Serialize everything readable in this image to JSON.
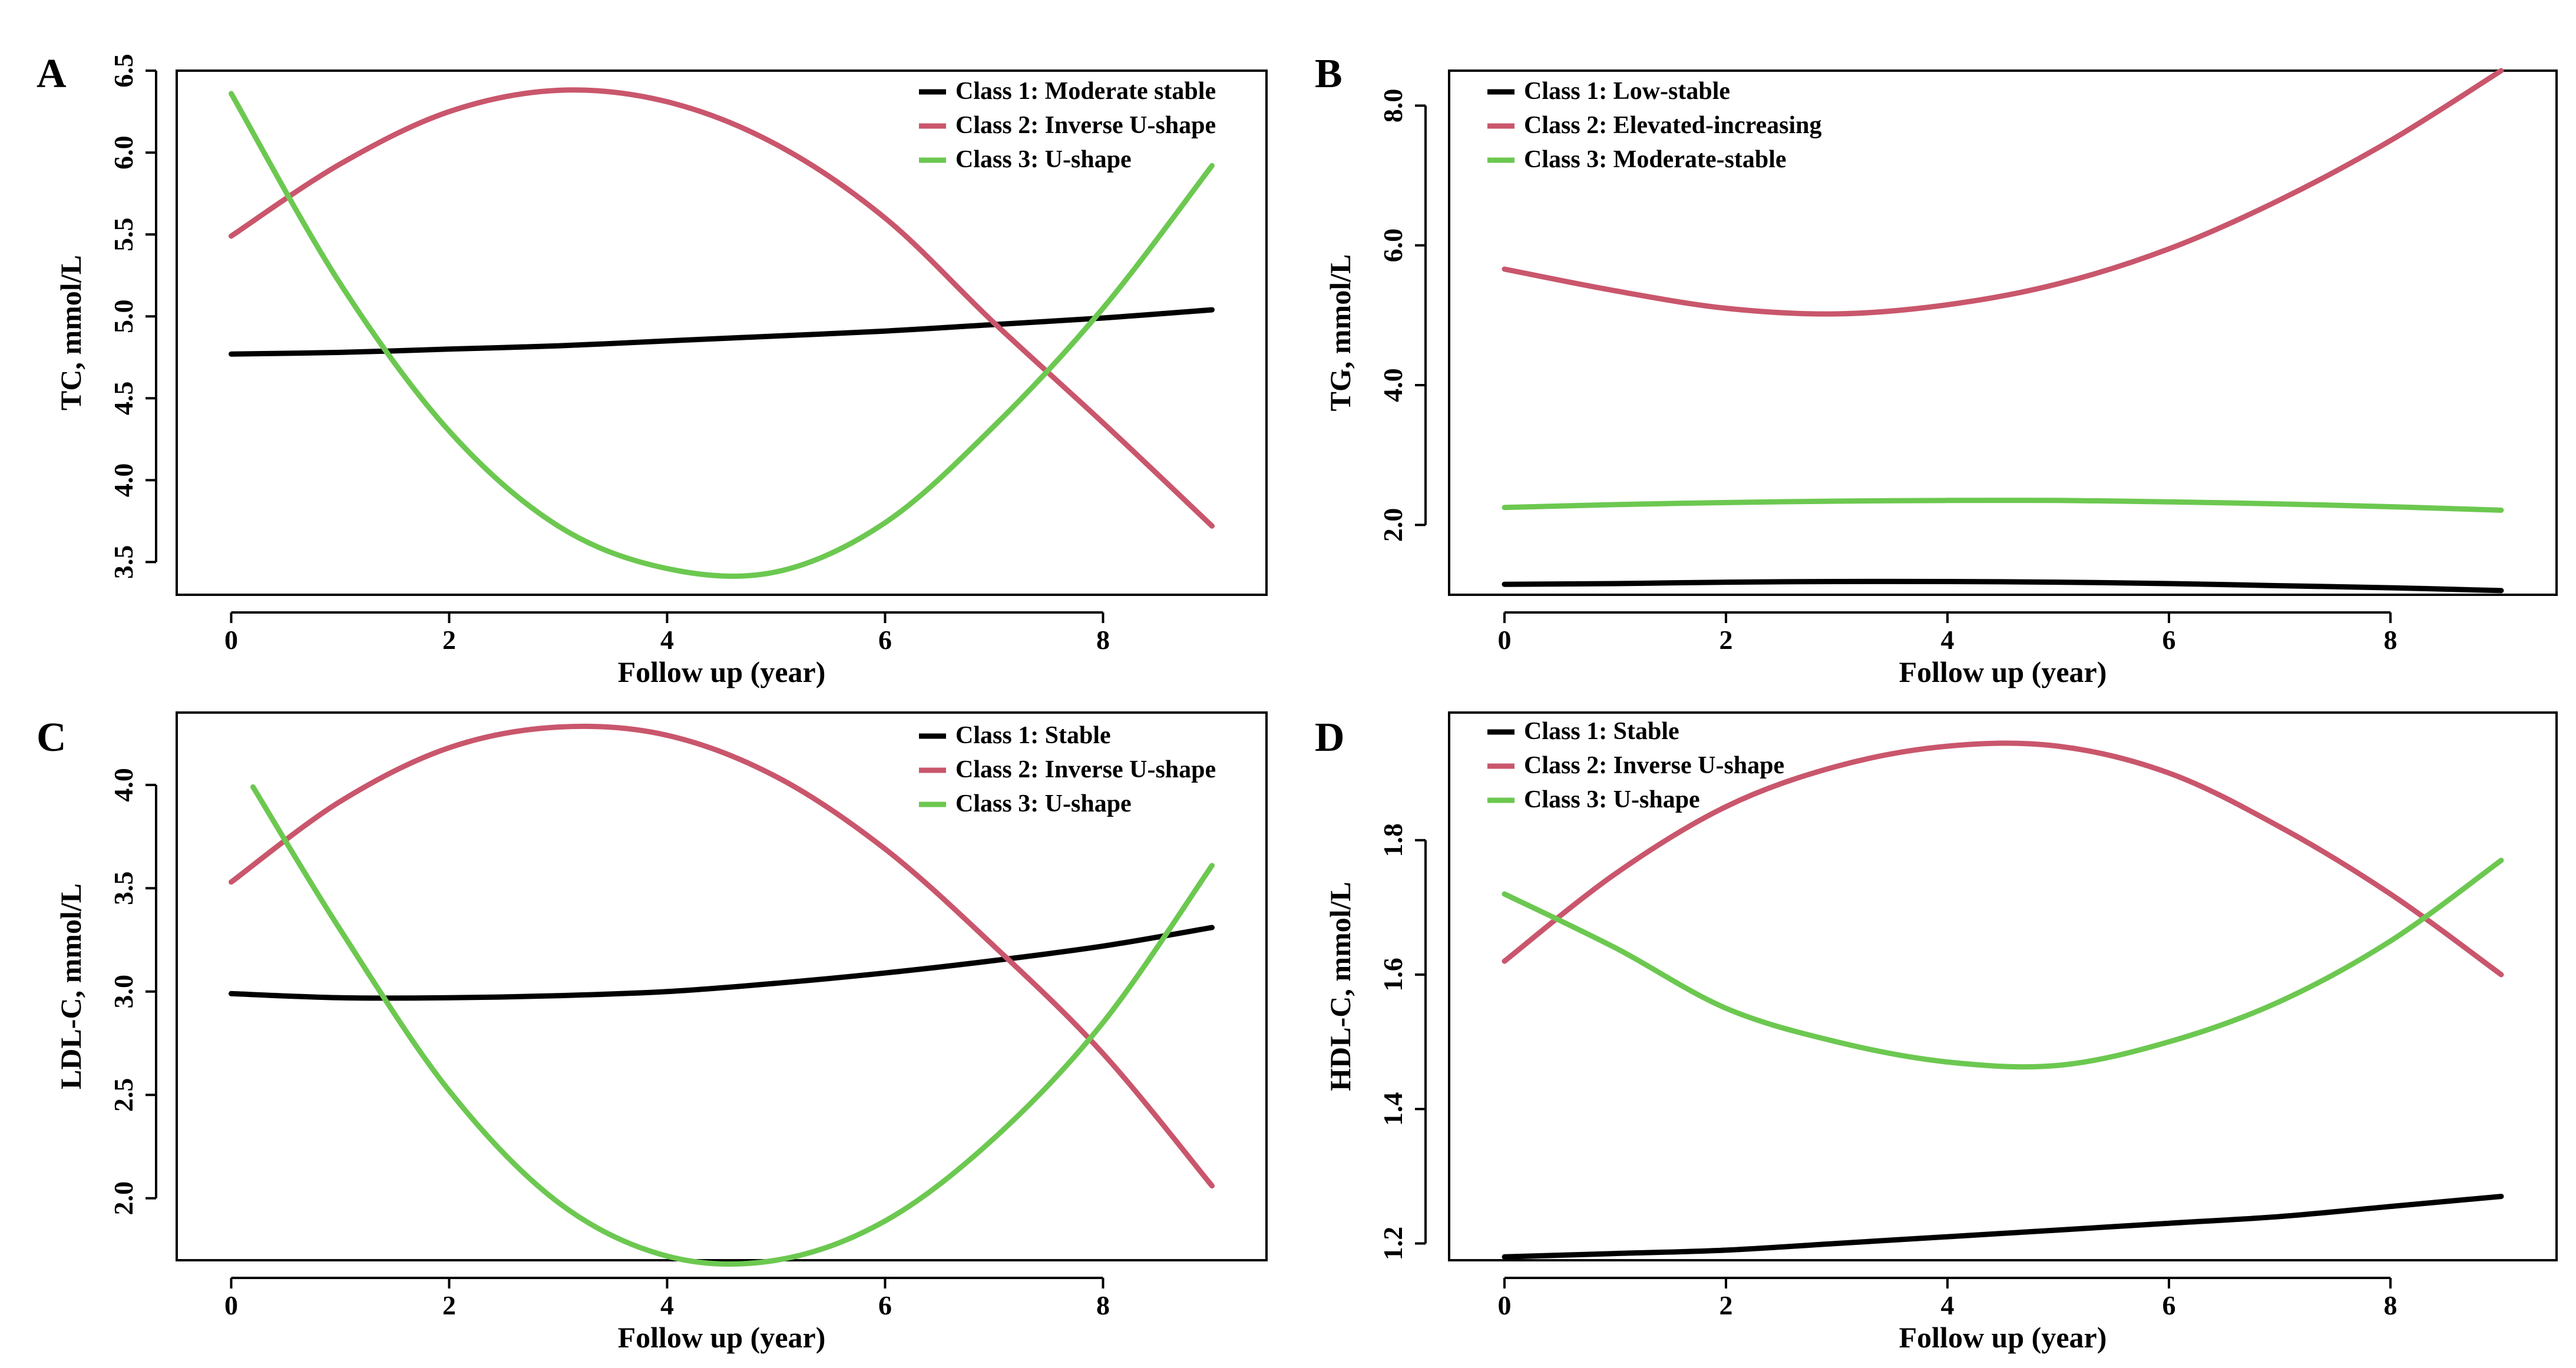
{
  "chart_data": [
    {
      "type": "line",
      "panel": "A",
      "xlabel": "Follow up (year)",
      "ylabel": "TC, mmol/L",
      "xlim": [
        -0.5,
        9.5
      ],
      "ylim": [
        3.3,
        6.5
      ],
      "xticks": [
        0,
        2,
        4,
        6,
        8
      ],
      "yticks": [
        3.5,
        4.0,
        4.5,
        5.0,
        5.5,
        6.0,
        6.5
      ],
      "ytick_labels": [
        "3.5",
        "4.0",
        "4.5",
        "5.0",
        "5.5",
        "6.0",
        "6.5"
      ],
      "legend_position": "top-right",
      "series": [
        {
          "name": "Class 1: Moderate stable",
          "color": "#000000",
          "x": [
            0,
            1,
            2,
            3,
            4,
            5,
            6,
            7,
            8,
            9
          ],
          "y": [
            4.77,
            4.78,
            4.8,
            4.82,
            4.85,
            4.88,
            4.91,
            4.95,
            4.99,
            5.04
          ]
        },
        {
          "name": "Class 2: Inverse U-shape",
          "color": "#c9566c",
          "x": [
            0,
            1,
            2,
            3,
            4,
            5,
            6,
            7,
            8,
            9
          ],
          "y": [
            5.49,
            5.93,
            6.25,
            6.38,
            6.31,
            6.05,
            5.6,
            4.96,
            4.35,
            3.72
          ]
        },
        {
          "name": "Class 3: U-shape",
          "color": "#6cc850",
          "x": [
            0,
            1,
            2,
            3,
            4,
            5,
            6,
            7,
            8,
            9
          ],
          "y": [
            6.36,
            5.2,
            4.3,
            3.72,
            3.46,
            3.44,
            3.74,
            4.33,
            5.05,
            5.92
          ]
        }
      ]
    },
    {
      "type": "line",
      "panel": "B",
      "xlabel": "Follow up (year)",
      "ylabel": "TG, mmol/L",
      "xlim": [
        -0.5,
        9.5
      ],
      "ylim": [
        1.0,
        8.5
      ],
      "xticks": [
        0,
        2,
        4,
        6,
        8
      ],
      "yticks": [
        2.0,
        4.0,
        6.0,
        8.0
      ],
      "ytick_labels": [
        "2.0",
        "4.0",
        "6.0",
        "8.0"
      ],
      "legend_position": "top-left",
      "series": [
        {
          "name": "Class 1: Low-stable",
          "color": "#000000",
          "x": [
            0,
            1,
            2,
            3,
            4,
            5,
            6,
            7,
            8,
            9
          ],
          "y": [
            1.15,
            1.16,
            1.18,
            1.19,
            1.19,
            1.18,
            1.16,
            1.13,
            1.1,
            1.06
          ]
        },
        {
          "name": "Class 2: Elevated-increasing",
          "color": "#c9566c",
          "x": [
            0,
            1,
            2,
            3,
            4,
            5,
            6,
            7,
            8,
            9
          ],
          "y": [
            5.66,
            5.35,
            5.1,
            5.02,
            5.15,
            5.45,
            5.95,
            6.65,
            7.5,
            8.5
          ]
        },
        {
          "name": "Class 3: Moderate-stable",
          "color": "#6cc850",
          "x": [
            0,
            1,
            2,
            3,
            4,
            5,
            6,
            7,
            8,
            9
          ],
          "y": [
            2.25,
            2.29,
            2.32,
            2.34,
            2.35,
            2.35,
            2.33,
            2.3,
            2.26,
            2.21
          ]
        }
      ]
    },
    {
      "type": "line",
      "panel": "C",
      "xlabel": "Follow up (year)",
      "ylabel": "LDL-C, mmol/L",
      "xlim": [
        -0.5,
        9.5
      ],
      "ylim": [
        1.7,
        4.35
      ],
      "xticks": [
        0,
        2,
        4,
        6,
        8
      ],
      "yticks": [
        2.0,
        2.5,
        3.0,
        3.5,
        4.0
      ],
      "ytick_labels": [
        "2.0",
        "2.5",
        "3.0",
        "3.5",
        "4.0"
      ],
      "legend_position": "top-right",
      "series": [
        {
          "name": "Class 1: Stable",
          "color": "#000000",
          "x": [
            0,
            1,
            2,
            3,
            4,
            5,
            6,
            7,
            8,
            9
          ],
          "y": [
            2.99,
            2.97,
            2.97,
            2.98,
            3.0,
            3.04,
            3.09,
            3.15,
            3.22,
            3.31
          ]
        },
        {
          "name": "Class 2: Inverse U-shape",
          "color": "#c9566c",
          "x": [
            0,
            1,
            2,
            3,
            4,
            5,
            6,
            7,
            8,
            9
          ],
          "y": [
            3.53,
            3.92,
            4.18,
            4.28,
            4.24,
            4.04,
            3.69,
            3.22,
            2.7,
            2.06
          ]
        },
        {
          "name": "Class 3: U-shape",
          "color": "#6cc850",
          "x": [
            0.2,
            1,
            2,
            3,
            4,
            5,
            6,
            7,
            8,
            9
          ],
          "y": [
            3.99,
            3.3,
            2.52,
            1.98,
            1.72,
            1.7,
            1.89,
            2.29,
            2.85,
            3.61
          ]
        }
      ]
    },
    {
      "type": "line",
      "panel": "D",
      "xlabel": "Follow up (year)",
      "ylabel": "HDL-C, mmol/L",
      "xlim": [
        -0.5,
        9.5
      ],
      "ylim": [
        1.175,
        1.99
      ],
      "xticks": [
        0,
        2,
        4,
        6,
        8
      ],
      "yticks": [
        1.2,
        1.4,
        1.6,
        1.8
      ],
      "ytick_labels": [
        "1.2",
        "1.4",
        "1.6",
        "1.8"
      ],
      "legend_position": "top-left",
      "series": [
        {
          "name": "Class 1: Stable",
          "color": "#000000",
          "x": [
            0,
            1,
            2,
            3,
            4,
            5,
            6,
            7,
            8,
            9
          ],
          "y": [
            1.18,
            1.185,
            1.19,
            1.2,
            1.21,
            1.22,
            1.23,
            1.24,
            1.255,
            1.27
          ]
        },
        {
          "name": "Class 2: Inverse U-shape",
          "color": "#c9566c",
          "x": [
            0,
            1,
            2,
            3,
            4,
            5,
            6,
            7,
            8,
            9
          ],
          "y": [
            1.62,
            1.75,
            1.85,
            1.91,
            1.94,
            1.94,
            1.9,
            1.82,
            1.72,
            1.6
          ]
        },
        {
          "name": "Class 3: U-shape",
          "color": "#6cc850",
          "x": [
            0,
            1,
            2,
            3,
            4,
            5,
            6,
            7,
            8,
            9
          ],
          "y": [
            1.72,
            1.64,
            1.55,
            1.5,
            1.47,
            1.465,
            1.5,
            1.56,
            1.65,
            1.77
          ]
        }
      ]
    }
  ]
}
